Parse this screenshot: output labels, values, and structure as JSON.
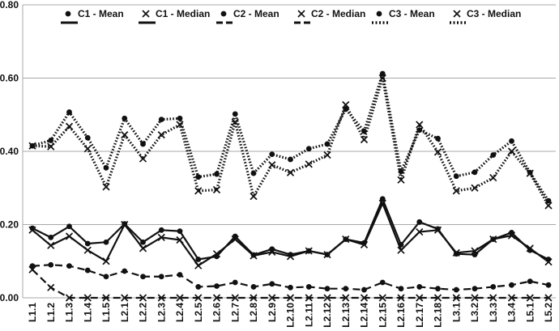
{
  "chart_data": {
    "type": "line",
    "title": "",
    "xlabel": "",
    "ylabel": "",
    "ylim": [
      0,
      0.8
    ],
    "yticks": [
      "0.00",
      "0.20",
      "0.40",
      "0.60",
      "0.80"
    ],
    "grid": "horizontal",
    "legend_position": "top",
    "categories": [
      "L1.1",
      "L1.2",
      "L1.3",
      "L1.4",
      "L1.5",
      "L2.1",
      "L2.2",
      "L2.3",
      "L2.4",
      "L2.5",
      "L2.6",
      "L2.7",
      "L2.8",
      "L2.9",
      "L2.10",
      "L2.11",
      "L2.12",
      "L2.13",
      "L2.14",
      "L2.15",
      "L2.16",
      "L2.17",
      "L2.18",
      "L3.1",
      "L3.2",
      "L3.3",
      "L3.4",
      "L5.1",
      "L5.2"
    ],
    "series": [
      {
        "name": "C1 - Mean",
        "marker": "circle",
        "dash": "solid",
        "color": "#111111",
        "values": [
          0.19,
          0.165,
          0.195,
          0.148,
          0.152,
          0.202,
          0.152,
          0.185,
          0.182,
          0.105,
          0.113,
          0.168,
          0.117,
          0.133,
          0.118,
          0.128,
          0.118,
          0.16,
          0.15,
          0.27,
          0.145,
          0.207,
          0.188,
          0.12,
          0.118,
          0.16,
          0.178,
          0.13,
          0.105
        ]
      },
      {
        "name": "C1 - Median",
        "marker": "x",
        "dash": "solid",
        "color": "#111111",
        "values": [
          0.185,
          0.143,
          0.168,
          0.13,
          0.1,
          0.2,
          0.135,
          0.165,
          0.158,
          0.088,
          0.12,
          0.16,
          0.115,
          0.125,
          0.113,
          0.128,
          0.118,
          0.16,
          0.145,
          0.258,
          0.13,
          0.18,
          0.185,
          0.123,
          0.128,
          0.16,
          0.17,
          0.135,
          0.098
        ]
      },
      {
        "name": "C2 - Mean",
        "marker": "circle",
        "dash": "long-dash",
        "color": "#111111",
        "values": [
          0.087,
          0.09,
          0.087,
          0.075,
          0.058,
          0.073,
          0.058,
          0.058,
          0.063,
          0.03,
          0.032,
          0.042,
          0.03,
          0.038,
          0.028,
          0.03,
          0.025,
          0.025,
          0.022,
          0.042,
          0.025,
          0.03,
          0.025,
          0.022,
          0.025,
          0.03,
          0.035,
          0.045,
          0.035
        ]
      },
      {
        "name": "C2 - Median",
        "marker": "x",
        "dash": "long-dash",
        "color": "#111111",
        "values": [
          0.077,
          0.028,
          0,
          0,
          0,
          0,
          0,
          0,
          0,
          0,
          0,
          0,
          0,
          0,
          0,
          0,
          0,
          0,
          0,
          0,
          0,
          0,
          0,
          0,
          0,
          0,
          0,
          0,
          0
        ]
      },
      {
        "name": "C3 - Mean",
        "marker": "circle",
        "dash": "dotted",
        "color": "#111111",
        "values": [
          0.415,
          0.43,
          0.507,
          0.437,
          0.355,
          0.49,
          0.42,
          0.487,
          0.49,
          0.33,
          0.338,
          0.502,
          0.34,
          0.392,
          0.378,
          0.407,
          0.42,
          0.515,
          0.455,
          0.612,
          0.345,
          0.458,
          0.435,
          0.332,
          0.343,
          0.39,
          0.428,
          0.342,
          0.265
        ]
      },
      {
        "name": "C3 - Median",
        "marker": "x",
        "dash": "dotted",
        "color": "#111111",
        "values": [
          0.415,
          0.413,
          0.468,
          0.407,
          0.303,
          0.445,
          0.38,
          0.445,
          0.473,
          0.292,
          0.295,
          0.48,
          0.277,
          0.363,
          0.342,
          0.365,
          0.39,
          0.527,
          0.432,
          0.6,
          0.322,
          0.473,
          0.398,
          0.292,
          0.3,
          0.328,
          0.4,
          0.34,
          0.252
        ]
      }
    ]
  }
}
